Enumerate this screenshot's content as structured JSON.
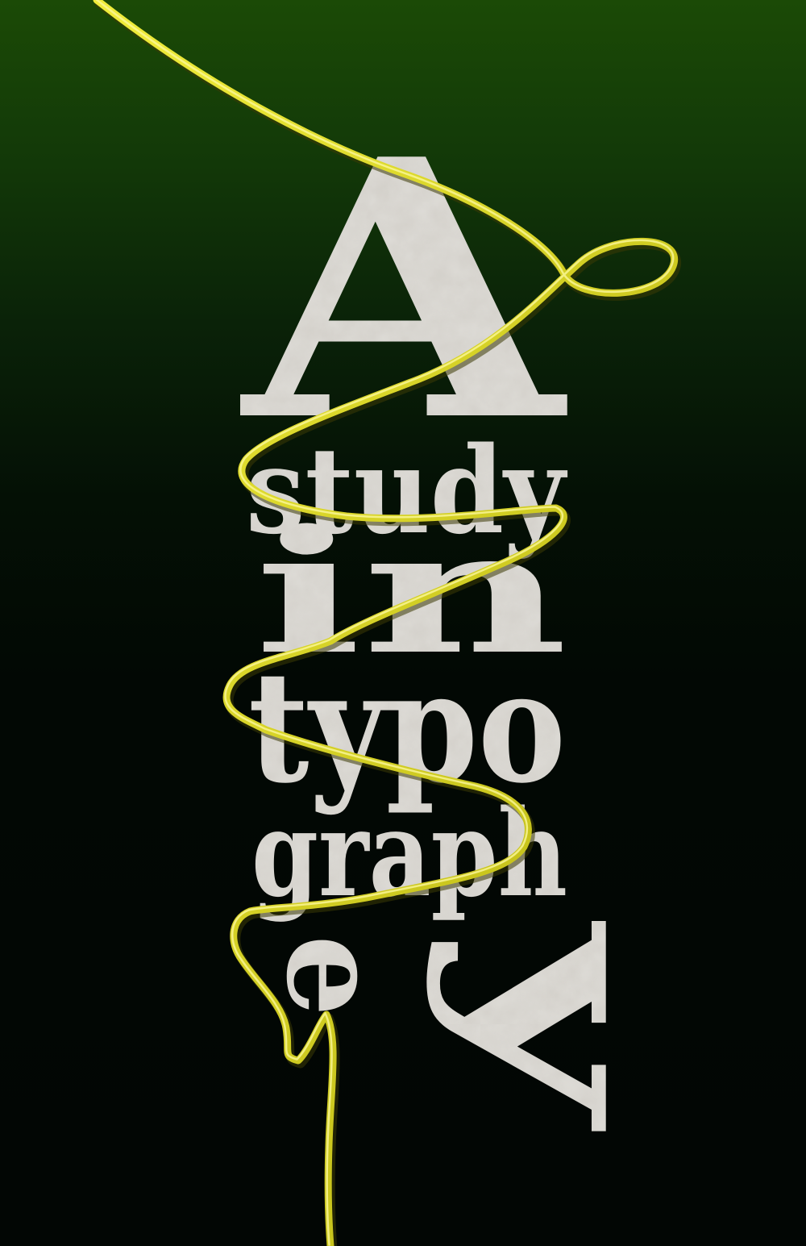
{
  "poster": {
    "line1": "A",
    "line2": "study",
    "line3": "in",
    "line4": "typo",
    "line5": "graph",
    "line6_letter_e": "e",
    "line6_letter_y": "y"
  },
  "colors": {
    "background_top": "#1b4a06",
    "background_bottom": "#020604",
    "letters": "#d6d3cd",
    "wire": "#d6d21a"
  }
}
